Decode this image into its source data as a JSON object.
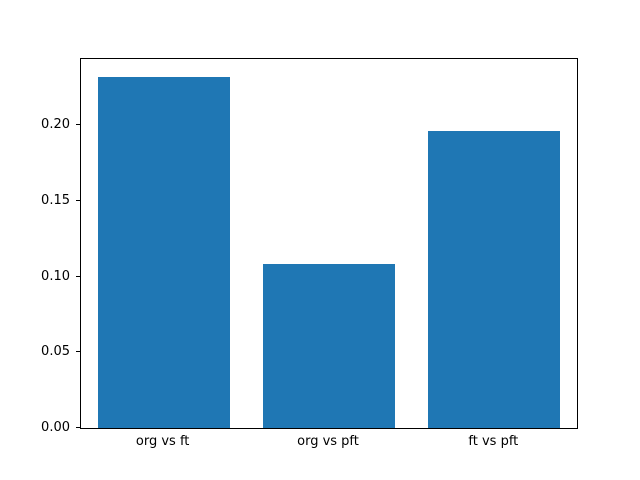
{
  "figure": {
    "background": "#ffffff",
    "frame_color": "#000000"
  },
  "chart_data": {
    "type": "bar",
    "categories": [
      "org vs ft",
      "org vs pft",
      "ft vs pft"
    ],
    "values": [
      0.232,
      0.108,
      0.196
    ],
    "title": "",
    "xlabel": "",
    "ylabel": "",
    "ylim": [
      0,
      0.2436
    ],
    "yticks": [
      0.0,
      0.05,
      0.1,
      0.15,
      0.2
    ],
    "ytick_labels": [
      "0.00",
      "0.05",
      "0.10",
      "0.15",
      "0.20"
    ],
    "bar_color": "#1f77b4",
    "bar_width_fraction": 0.8,
    "grid": false,
    "legend_position": "none"
  }
}
